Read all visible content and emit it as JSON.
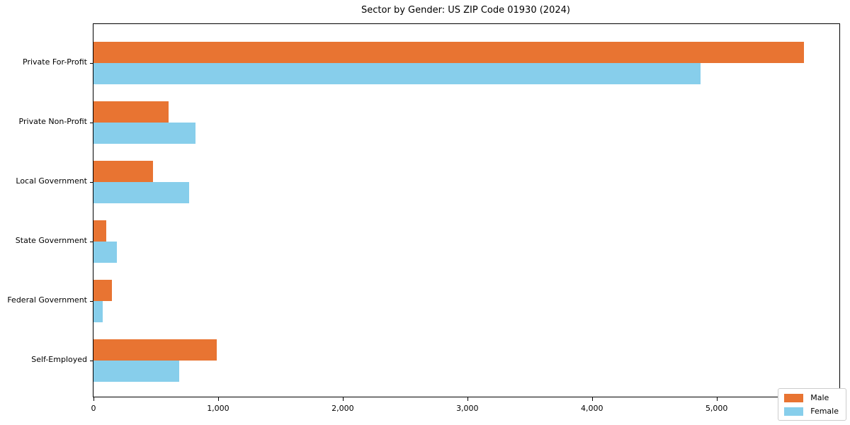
{
  "chart_data": {
    "type": "bar",
    "orientation": "horizontal",
    "title": "Sector by Gender: US ZIP Code 01930 (2024)",
    "categories": [
      "Private For-Profit",
      "Private Non-Profit",
      "Local Government",
      "State Government",
      "Federal Government",
      "Self-Employed"
    ],
    "series": [
      {
        "name": "Male",
        "color": "#E87432",
        "values": [
          5700,
          600,
          480,
          100,
          150,
          990
        ]
      },
      {
        "name": "Female",
        "color": "#87CEEB",
        "values": [
          4870,
          820,
          770,
          190,
          75,
          690
        ]
      }
    ],
    "xlim": [
      0,
      5985
    ],
    "x_ticks": [
      0,
      1000,
      2000,
      3000,
      4000,
      5000
    ],
    "x_tick_labels": [
      "0",
      "1,000",
      "2,000",
      "3,000",
      "4,000",
      "5,000"
    ],
    "ylabel": "",
    "xlabel": "",
    "grid": false,
    "legend_position": "lower right",
    "axis_color": "#000000",
    "background_color": "#ffffff"
  }
}
